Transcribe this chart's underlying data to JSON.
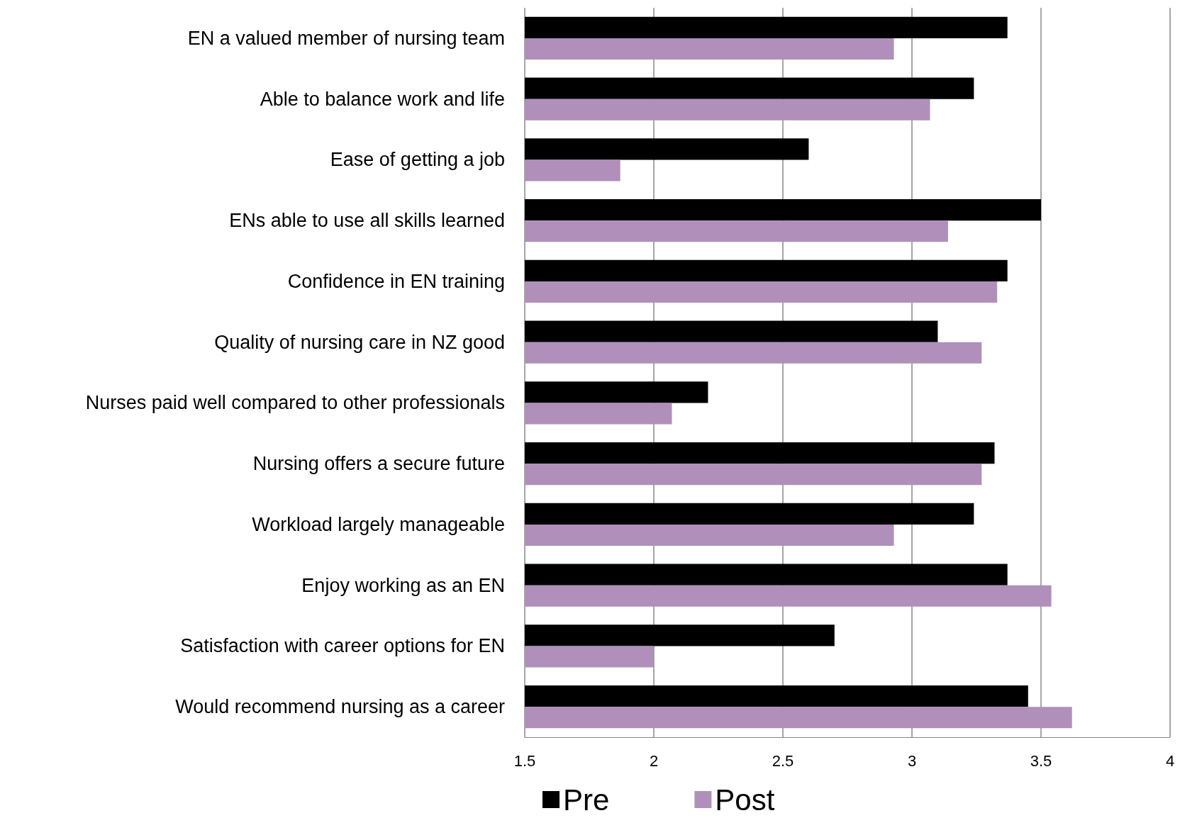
{
  "chart_data": {
    "type": "bar",
    "orientation": "horizontal",
    "categories": [
      "EN a valued member of nursing team",
      "Able to balance work and life",
      "Ease of getting a job",
      "ENs able to use all skills learned",
      "Confidence in EN training",
      "Quality of nursing care in NZ good",
      "Nurses paid well compared to other professionals",
      "Nursing offers a secure future",
      "Workload largely manageable",
      "Enjoy working as an EN",
      "Satisfaction with career options for EN",
      "Would recommend nursing as a career"
    ],
    "series": [
      {
        "name": "Pre",
        "color": "#000000",
        "values": [
          3.37,
          3.24,
          2.6,
          3.5,
          3.37,
          3.1,
          2.21,
          3.32,
          3.24,
          3.37,
          2.7,
          3.45
        ]
      },
      {
        "name": "Post",
        "color": "#b08fba",
        "values": [
          2.93,
          3.07,
          1.87,
          3.14,
          3.33,
          3.27,
          2.07,
          3.27,
          2.93,
          3.54,
          2.0,
          3.62
        ]
      }
    ],
    "xlim": [
      1.5,
      4
    ],
    "xticks": [
      1.5,
      2,
      2.5,
      3,
      3.5,
      4
    ],
    "grid": "x",
    "legend": "bottom"
  }
}
